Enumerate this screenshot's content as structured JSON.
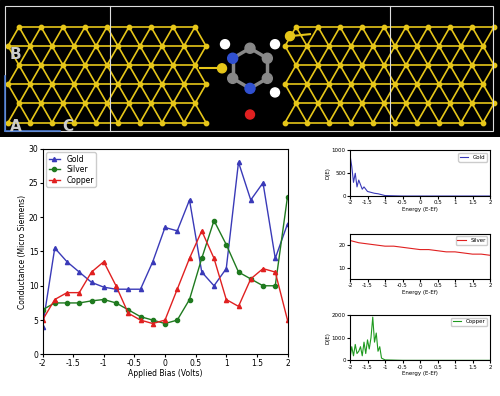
{
  "diagram": {
    "axis_labels": [
      "B",
      "A",
      "C"
    ]
  },
  "chart_data": [
    {
      "type": "line",
      "xlabel": "Applied Bias (Volts)",
      "ylabel": "Conductance (Micro Siemens)",
      "x": [
        -2,
        -1.8,
        -1.6,
        -1.4,
        -1.2,
        -1,
        -0.8,
        -0.6,
        -0.4,
        -0.2,
        0,
        0.2,
        0.4,
        0.6,
        0.8,
        1,
        1.2,
        1.4,
        1.6,
        1.8,
        2
      ],
      "xlim": [
        -2,
        2
      ],
      "xticks": [
        -2,
        -1.5,
        -1,
        -0.5,
        0,
        0.5,
        1,
        1.5,
        2
      ],
      "ylim": [
        0,
        30
      ],
      "yticks": [
        0,
        5,
        10,
        15,
        20,
        25,
        30
      ],
      "legend": "upper left",
      "series": [
        {
          "name": "Gold",
          "color": "#3a3ab8",
          "marker": "^",
          "values": [
            4,
            15.5,
            13.5,
            12,
            10.5,
            9.8,
            9.5,
            9.5,
            9.5,
            13.5,
            18.5,
            18,
            22.5,
            12,
            10,
            12.5,
            28,
            22.5,
            25,
            14,
            19
          ]
        },
        {
          "name": "Silver",
          "color": "#1f7a1f",
          "marker": "o",
          "values": [
            6.5,
            7.5,
            7.5,
            7.5,
            7.8,
            8,
            7.5,
            6.5,
            5.5,
            5,
            4.5,
            5,
            8,
            14,
            19.5,
            16,
            12,
            11,
            10,
            10,
            23
          ]
        },
        {
          "name": "Copper",
          "color": "#e02020",
          "marker": "^",
          "values": [
            5,
            8,
            9,
            9,
            12,
            13.5,
            10,
            6,
            5,
            4.5,
            5,
            9.5,
            14,
            18,
            14,
            8,
            7,
            11,
            12.5,
            12,
            5
          ]
        }
      ]
    },
    {
      "type": "line",
      "xlabel": "Energy (E-Ef)",
      "ylabel": "D(E)",
      "x": [
        -2,
        -1.95,
        -1.9,
        -1.85,
        -1.8,
        -1.75,
        -1.7,
        -1.65,
        -1.6,
        -1.5,
        -1.4,
        -1.3,
        -1.2,
        -1.1,
        -1,
        -0.5,
        0,
        0.5,
        1,
        1.5,
        2
      ],
      "xlim": [
        -2,
        2
      ],
      "xticks": [
        -2,
        -1.5,
        -1,
        -0.5,
        0,
        0.5,
        1,
        1.5,
        2
      ],
      "ylim": [
        0,
        1000
      ],
      "yticks": [
        0,
        500,
        1000
      ],
      "legend": "upper right",
      "series": [
        {
          "name": "Gold",
          "color": "#3a3ab8",
          "values": [
            900,
            650,
            300,
            500,
            200,
            350,
            250,
            150,
            200,
            100,
            80,
            60,
            50,
            30,
            10,
            0,
            0,
            0,
            0,
            0,
            0
          ]
        }
      ]
    },
    {
      "type": "line",
      "xlabel": "Energy (E-Ef)",
      "x": [
        -2,
        -1.75,
        -1.5,
        -1.25,
        -1,
        -0.75,
        -0.5,
        -0.25,
        0,
        0.25,
        0.5,
        0.75,
        1,
        1.25,
        1.5,
        1.75,
        2
      ],
      "xlim": [
        -2,
        2
      ],
      "xticks": [
        -2,
        -1.5,
        -1,
        -0.5,
        0,
        0.5,
        1,
        1.5,
        2
      ],
      "ylim": [
        5,
        25
      ],
      "yticks": [
        10,
        20
      ],
      "legend": "upper right",
      "series": [
        {
          "name": "Silver",
          "color": "#e02020",
          "values": [
            22,
            21,
            20.5,
            20,
            19.5,
            19.5,
            19,
            18.5,
            18,
            18,
            17.5,
            17,
            17,
            16.5,
            16,
            16,
            15.5
          ]
        }
      ]
    },
    {
      "type": "line",
      "xlabel": "Energy (E-Ef)",
      "ylabel": "D(E)",
      "x": [
        -2,
        -1.95,
        -1.9,
        -1.85,
        -1.8,
        -1.75,
        -1.7,
        -1.65,
        -1.6,
        -1.55,
        -1.5,
        -1.45,
        -1.4,
        -1.35,
        -1.3,
        -1.25,
        -1.2,
        -1.15,
        -1.1,
        -1,
        -0.5,
        0,
        0.5,
        1,
        1.5,
        2
      ],
      "xlim": [
        -2,
        2
      ],
      "xticks": [
        -2,
        -1.5,
        -1,
        -0.5,
        0,
        0.5,
        1,
        1.5,
        2
      ],
      "ylim": [
        0,
        2000
      ],
      "yticks": [
        0,
        1000,
        2000
      ],
      "legend": "upper right",
      "series": [
        {
          "name": "Copper",
          "color": "#1f9a1f",
          "values": [
            100,
            600,
            200,
            700,
            300,
            400,
            600,
            200,
            800,
            300,
            900,
            500,
            1000,
            1900,
            800,
            1200,
            400,
            600,
            100,
            20,
            0,
            0,
            0,
            0,
            0,
            0
          ]
        }
      ]
    }
  ]
}
